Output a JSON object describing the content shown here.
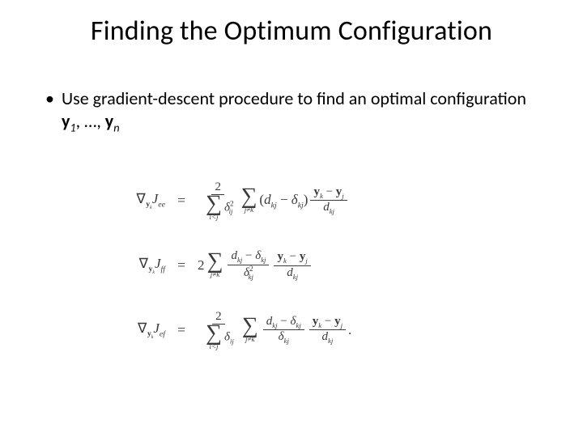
{
  "colors": {
    "background": "#ffffff",
    "text": "#000000",
    "equation_text": "#3a3a3a"
  },
  "fonts": {
    "body": "Calibri",
    "math": "Georgia"
  },
  "title": "Finding the Optimum Configuration",
  "bullet": {
    "prefix": "Use gradient-descent procedure to find an optimal configuration ",
    "var1": "y",
    "sub1": "1",
    "mid": ", …, ",
    "var2": "y",
    "sub2": "n"
  },
  "eq": {
    "lhs1_nabla": "∇",
    "lhs1_sub": "y",
    "lhs1_subk": "k",
    "lhs1_J": "J",
    "lhs1_Jsub": "ee",
    "lhs2_Jsub": "ff",
    "lhs3_Jsub": "ef",
    "equals": "=",
    "row1_frac_num": "2",
    "row1_frac_den_sigma_below": "i<j",
    "row1_frac_den_delta": "δ",
    "row1_frac_den_sub": "ij",
    "row1_frac_den_sup": "2",
    "row1_sum2_below": "j≠k",
    "row1_paren_d": "d",
    "row1_paren_dsub": "kj",
    "row1_paren_minus": " − ",
    "row1_paren_delta": "δ",
    "row1_paren_deltasub": "kj",
    "row1_rfrac_num_y1": "y",
    "row1_rfrac_num_y1sub": "k",
    "row1_rfrac_num_minus": " − ",
    "row1_rfrac_num_y2": "y",
    "row1_rfrac_num_y2sub": "j",
    "row1_rfrac_den_d": "d",
    "row1_rfrac_den_dsub": "kj",
    "row2_two": "2",
    "row2_sum_below": "j≠k",
    "row2_frac_num_d": "d",
    "row2_frac_num_dsub": "kj",
    "row2_frac_num_minus": " − ",
    "row2_frac_num_delta": "δ",
    "row2_frac_num_deltasub": "kj",
    "row2_frac_den_delta": "δ",
    "row2_frac_den_sub": "kj",
    "row2_frac_den_sup": "2",
    "row2_rfrac_num_y1": "y",
    "row2_rfrac_num_y1sub": "k",
    "row2_rfrac_num_minus": " − ",
    "row2_rfrac_num_y2": "y",
    "row2_rfrac_num_y2sub": "j",
    "row2_rfrac_den_d": "d",
    "row2_rfrac_den_dsub": "kj",
    "row3_frac_num": "2",
    "row3_frac_den_sigma_below": "i<j",
    "row3_frac_den_delta": "δ",
    "row3_frac_den_sub": "ij",
    "row3_sum2_below": "j≠k",
    "row3_mid_num_d": "d",
    "row3_mid_num_dsub": "kj",
    "row3_mid_num_minus": " − ",
    "row3_mid_num_delta": "δ",
    "row3_mid_num_deltasub": "kj",
    "row3_mid_den_delta": "δ",
    "row3_mid_den_sub": "kj",
    "row3_rfrac_num_y1": "y",
    "row3_rfrac_num_y1sub": "k",
    "row3_rfrac_num_minus": " − ",
    "row3_rfrac_num_y2": "y",
    "row3_rfrac_num_y2sub": "j",
    "row3_rfrac_den_d": "d",
    "row3_rfrac_den_dsub": "kj",
    "row3_period": "."
  }
}
